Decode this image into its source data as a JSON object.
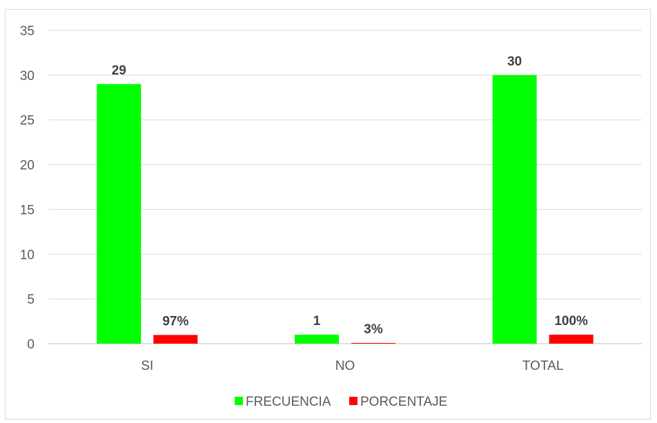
{
  "chart_data": {
    "type": "bar",
    "categories": [
      "SI",
      "NO",
      "TOTAL"
    ],
    "series": [
      {
        "name": "FRECUENCIA",
        "color": "#00ff00",
        "values": [
          29,
          1,
          30
        ],
        "labels": [
          "29",
          "1",
          "30"
        ]
      },
      {
        "name": "PORCENTAJE",
        "color": "#ff0000",
        "values": [
          0.97,
          0.03,
          1.0
        ],
        "labels": [
          "97%",
          "3%",
          "100%"
        ]
      }
    ],
    "ylim": [
      0,
      35
    ],
    "yticks": [
      0,
      5,
      10,
      15,
      20,
      25,
      30,
      35
    ],
    "grid": true,
    "legend_position": "bottom"
  }
}
